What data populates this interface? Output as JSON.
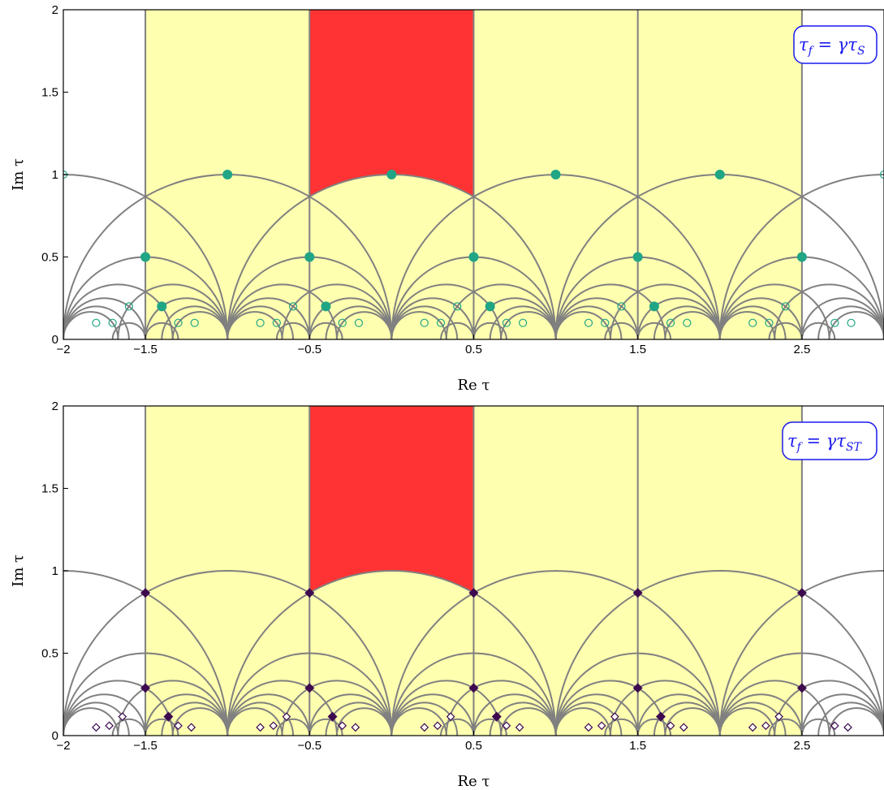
{
  "chart_data": [
    {
      "type": "scatter",
      "title": "",
      "xlabel": "Re τ",
      "ylabel": "Im τ",
      "xlim": [
        -2,
        3
      ],
      "ylim": [
        0,
        2
      ],
      "xticks": [
        "−2",
        "−1.5",
        "−0.5",
        "0.5",
        "1.5",
        "2.5"
      ],
      "yticks": [
        "0",
        "0.5",
        "1",
        "1.5",
        "2"
      ],
      "annotation": {
        "main": "τ",
        "sub1": "f",
        "eq": " = γτ",
        "sub2": "S"
      },
      "colors": {
        "fundamental_domain": "#ff3333",
        "images": "#ffffb0",
        "points": "#20a585",
        "curves": "#808080"
      },
      "series": [
        {
          "marker": "filled-circle",
          "x": [
            -1,
            0,
            1,
            2,
            -1.5,
            -0.5,
            0.5,
            1.5,
            2.5,
            -1.4,
            -0.4,
            0.6,
            1.6
          ],
          "y": [
            1,
            1,
            1,
            1,
            0.5,
            0.5,
            0.5,
            0.5,
            0.5,
            0.2,
            0.2,
            0.2,
            0.2
          ]
        },
        {
          "marker": "open-circle",
          "x": [
            -2,
            3,
            -1.6,
            -0.6,
            0.4,
            1.4,
            2.4,
            -1.8,
            -1.7,
            -1.2,
            -1.3,
            -0.8,
            -0.7,
            -0.2,
            -0.3,
            0.2,
            0.3,
            0.8,
            0.7,
            1.2,
            1.3,
            1.8,
            1.7,
            2.2,
            2.3,
            2.8,
            2.7
          ],
          "y": [
            1,
            1,
            0.2,
            0.2,
            0.2,
            0.2,
            0.2,
            0.1,
            0.1,
            0.1,
            0.1,
            0.1,
            0.1,
            0.1,
            0.1,
            0.1,
            0.1,
            0.1,
            0.1,
            0.1,
            0.1,
            0.1,
            0.1,
            0.1,
            0.1,
            0.1,
            0.1
          ]
        }
      ]
    },
    {
      "type": "scatter",
      "title": "",
      "xlabel": "Re τ",
      "ylabel": "Im τ",
      "xlim": [
        -2,
        3
      ],
      "ylim": [
        0,
        2
      ],
      "xticks": [
        "−2",
        "−1.5",
        "−0.5",
        "0.5",
        "1.5",
        "2.5"
      ],
      "yticks": [
        "0",
        "0.5",
        "1",
        "1.5",
        "2"
      ],
      "annotation": {
        "main": "τ",
        "sub1": "f",
        "eq": " = γτ",
        "sub2": "ST"
      },
      "colors": {
        "fundamental_domain": "#ff3333",
        "images": "#ffffb0",
        "points": "#3d0a4f",
        "curves": "#808080"
      },
      "series": [
        {
          "marker": "filled-diamond",
          "x": [
            -1.5,
            -0.5,
            0.5,
            1.5,
            2.5,
            -1.5,
            -0.5,
            0.5,
            1.5,
            2.5,
            -1.36,
            -0.36,
            0.64,
            1.64
          ],
          "y": [
            0.866,
            0.866,
            0.866,
            0.866,
            0.866,
            0.289,
            0.289,
            0.289,
            0.289,
            0.289,
            0.115,
            0.115,
            0.115,
            0.115
          ]
        },
        {
          "marker": "open-diamond",
          "x": [
            -1.64,
            -0.64,
            0.36,
            1.36,
            2.36,
            -1.8,
            -1.72,
            -1.22,
            -1.3,
            -0.8,
            -0.72,
            -0.22,
            -0.3,
            0.2,
            0.28,
            0.78,
            0.7,
            1.2,
            1.28,
            1.78,
            1.7,
            2.2,
            2.28,
            2.78,
            2.7
          ],
          "y": [
            0.115,
            0.115,
            0.115,
            0.115,
            0.115,
            0.05,
            0.06,
            0.05,
            0.06,
            0.05,
            0.06,
            0.05,
            0.06,
            0.05,
            0.06,
            0.05,
            0.06,
            0.05,
            0.06,
            0.05,
            0.06,
            0.05,
            0.06,
            0.05,
            0.06
          ]
        }
      ]
    }
  ]
}
